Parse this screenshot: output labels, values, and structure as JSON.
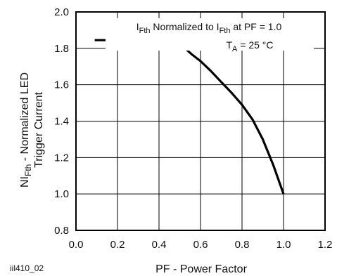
{
  "chart_data": {
    "type": "line",
    "xlabel": "PF - Power Factor",
    "ylabel": {
      "prefix": "NI",
      "prefix_sub": "Fth",
      "suffix": " - Normalized LED",
      "line2": "Trigger Current"
    },
    "xlim": [
      0.0,
      1.2
    ],
    "ylim": [
      0.8,
      2.0
    ],
    "x_ticks": [
      "0.0",
      "0.2",
      "0.4",
      "0.6",
      "0.8",
      "1.0",
      "1.2"
    ],
    "y_ticks": [
      "0.8",
      "1.0",
      "1.2",
      "1.4",
      "1.6",
      "1.8",
      "2.0"
    ],
    "grid": true,
    "annotation": {
      "line1": {
        "parts": [
          {
            "text": "I",
            "sub": false
          },
          {
            "text": "Fth",
            "sub": true
          },
          {
            "text": " Normalized to I",
            "sub": false
          },
          {
            "text": "Fth",
            "sub": true
          },
          {
            "text": " at PF = 1.0",
            "sub": false
          }
        ]
      },
      "line2": {
        "parts": [
          {
            "text": "T",
            "sub": false
          },
          {
            "text": "A",
            "sub": true
          },
          {
            "text": " = 25 °C",
            "sub": false
          }
        ]
      }
    },
    "series": [
      {
        "color": "#000000",
        "x": [
          0.09,
          0.12,
          0.16,
          0.2,
          0.3,
          0.4,
          0.44,
          0.47,
          0.5,
          0.53,
          0.56,
          0.6,
          0.65,
          0.7,
          0.75,
          0.8,
          0.85,
          0.9,
          0.95,
          1.0
        ],
        "y": [
          1.845,
          1.845,
          1.845,
          1.84,
          1.84,
          1.84,
          1.835,
          1.83,
          1.815,
          1.795,
          1.765,
          1.73,
          1.675,
          1.615,
          1.555,
          1.49,
          1.41,
          1.3,
          1.16,
          1.0
        ]
      }
    ]
  },
  "footer_code": "iil410_02"
}
